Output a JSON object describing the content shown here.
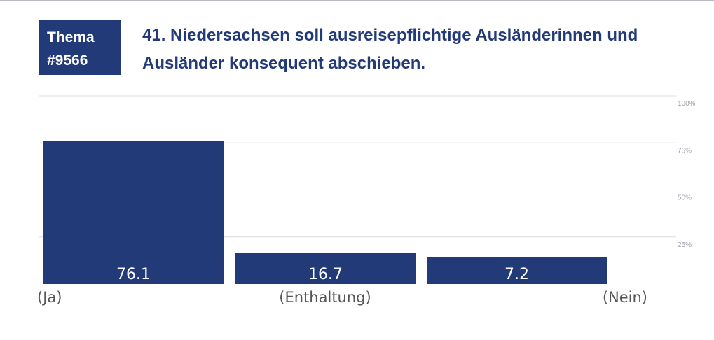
{
  "header": {
    "badge_line1": "Thema",
    "badge_line2": "#9566",
    "title": "41. Niedersachsen soll ausreisepflichtige Ausländerinnen und Ausländer konsequent abschieben."
  },
  "colors": {
    "bar": "#233a78",
    "grid": "#dcdcdc",
    "tick": "#a0a3b0",
    "label": "#555555"
  },
  "chart_data": {
    "type": "bar",
    "title": "41. Niedersachsen soll ausreisepflichtige Ausländerinnen und Ausländer konsequent abschieben.",
    "categories": [
      "(Ja)",
      "(Enthaltung)",
      "(Nein)"
    ],
    "values": [
      76.1,
      16.7,
      7.2
    ],
    "value_labels": [
      "76.1",
      "16.7",
      "7.2"
    ],
    "ylim": [
      0,
      100
    ],
    "yticks": [
      25,
      50,
      75,
      100
    ],
    "ytick_labels": [
      "25%",
      "50%",
      "75%",
      "100%"
    ],
    "grid": true,
    "xlabel": "",
    "ylabel": ""
  }
}
